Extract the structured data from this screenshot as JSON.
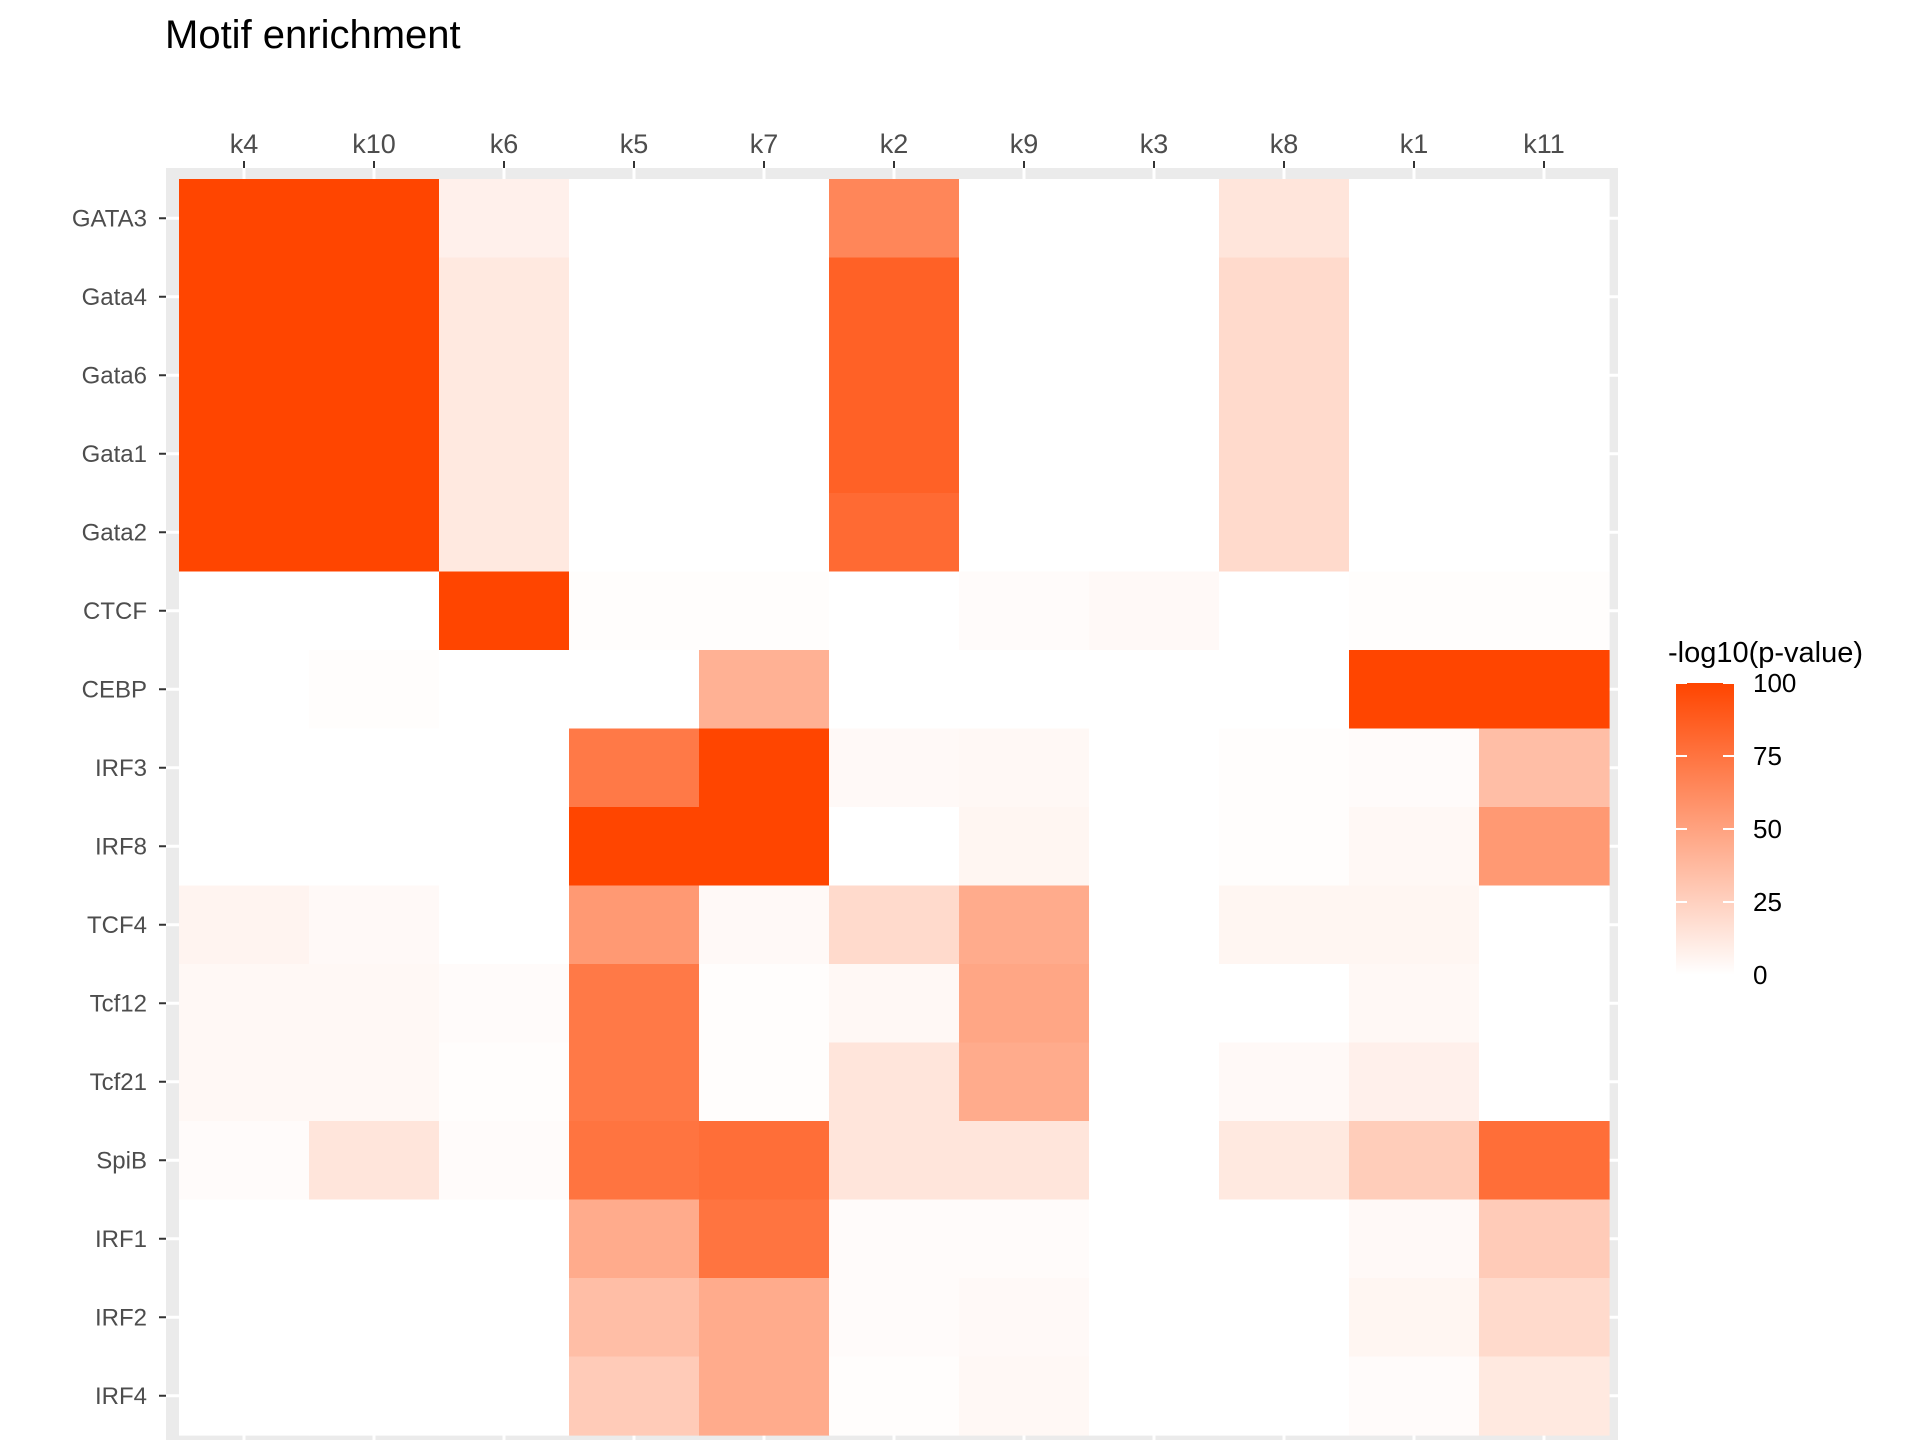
{
  "chart_data": {
    "type": "heatmap",
    "title": "Motif enrichment",
    "xlabel": "",
    "ylabel": "",
    "x_axis_position": "top",
    "columns": [
      "k4",
      "k10",
      "k6",
      "k5",
      "k7",
      "k2",
      "k9",
      "k3",
      "k8",
      "k1",
      "k11"
    ],
    "rows": [
      "GATA3",
      "Gata4",
      "Gata6",
      "Gata1",
      "Gata2",
      "CTCF",
      "CEBP",
      "IRF3",
      "IRF8",
      "TCF4",
      "Tcf12",
      "Tcf21",
      "SpiB",
      "IRF1",
      "IRF2",
      "IRF4"
    ],
    "values": [
      [
        100,
        100,
        8,
        0,
        0,
        65,
        0,
        0,
        14,
        0,
        0
      ],
      [
        100,
        100,
        12,
        0,
        0,
        85,
        0,
        0,
        20,
        0,
        0
      ],
      [
        100,
        100,
        12,
        0,
        0,
        85,
        0,
        0,
        20,
        0,
        0
      ],
      [
        100,
        100,
        12,
        0,
        0,
        85,
        0,
        0,
        20,
        0,
        0
      ],
      [
        100,
        100,
        12,
        0,
        0,
        80,
        0,
        0,
        20,
        0,
        0
      ],
      [
        0,
        0,
        100,
        1,
        1,
        0,
        2,
        3,
        0,
        1,
        1
      ],
      [
        0,
        1,
        0,
        0,
        42,
        0,
        0,
        0,
        0,
        100,
        100
      ],
      [
        0,
        0,
        0,
        72,
        100,
        3,
        4,
        0,
        1,
        2,
        35
      ],
      [
        0,
        0,
        0,
        100,
        100,
        0,
        5,
        0,
        1,
        4,
        55
      ],
      [
        6,
        3,
        0,
        55,
        3,
        20,
        45,
        0,
        5,
        5,
        0
      ],
      [
        4,
        4,
        2,
        72,
        1,
        4,
        48,
        0,
        0,
        4,
        0
      ],
      [
        4,
        4,
        1,
        72,
        1,
        14,
        45,
        0,
        3,
        8,
        0
      ],
      [
        2,
        14,
        2,
        75,
        78,
        14,
        14,
        0,
        12,
        27,
        78
      ],
      [
        0,
        0,
        0,
        45,
        75,
        2,
        2,
        0,
        0,
        3,
        28
      ],
      [
        0,
        0,
        0,
        35,
        45,
        2,
        3,
        0,
        0,
        5,
        20
      ],
      [
        0,
        0,
        0,
        28,
        45,
        1,
        4,
        0,
        0,
        2,
        12
      ]
    ],
    "color_scale": {
      "title": "-log10(p-value)",
      "min": 0,
      "max": 100,
      "low_color": "#ffffff",
      "high_color": "#ff4500",
      "breaks": [
        "0",
        "25",
        "50",
        "75",
        "100"
      ]
    },
    "panel_background": "#ebebeb",
    "grid": true,
    "legend_position": "right"
  }
}
